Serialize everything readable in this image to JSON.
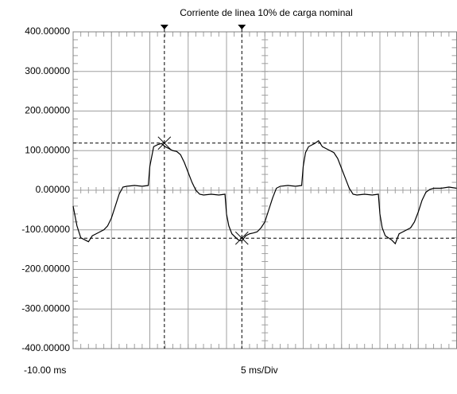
{
  "chart_data": {
    "type": "line",
    "title": "Corriente de linea 10% de carga nominal",
    "x_start_label": "-10.00 ms",
    "x_division_label": "5 ms/Div",
    "xlim": [
      -10,
      40
    ],
    "xticks": [
      -10,
      -5,
      0,
      5,
      10,
      15,
      20,
      25,
      30,
      35,
      40
    ],
    "ylim": [
      -400,
      400
    ],
    "yticks": [
      {
        "value": 400,
        "label": "400.00000"
      },
      {
        "value": 300,
        "label": "300.00000"
      },
      {
        "value": 200,
        "label": "200.00000"
      },
      {
        "value": 100,
        "label": "100.00000"
      },
      {
        "value": 0,
        "label": "0.00000"
      },
      {
        "value": -100,
        "label": "-100.00000"
      },
      {
        "value": -200,
        "label": "-200.00000"
      },
      {
        "value": -300,
        "label": "-300.00000"
      },
      {
        "value": -400,
        "label": "-400.00000"
      }
    ],
    "grid": true,
    "cursors": {
      "x": [
        1.9,
        12
      ],
      "y": [
        119,
        -121
      ]
    },
    "series": [
      {
        "color": "#000000",
        "x": [
          -10,
          -9.5,
          -9,
          -8.5,
          -8,
          -7.5,
          -7,
          -6.5,
          -6,
          -5.5,
          -5,
          -4.5,
          -4,
          -3.5,
          -3,
          -2,
          -1,
          -0.2,
          0,
          0.3,
          0.5,
          1,
          1.5,
          2,
          2.5,
          3,
          3.5,
          4,
          4.5,
          5,
          5.5,
          6,
          6.5,
          7,
          8,
          9,
          9.8,
          10,
          10.3,
          10.7,
          11.5,
          12,
          12.5,
          13,
          13.5,
          14,
          14.5,
          15,
          15.5,
          16,
          16.5,
          17,
          18,
          19,
          19.8,
          20,
          20.3,
          20.7,
          21.5,
          22,
          22.5,
          23,
          23.5,
          24,
          24.5,
          25,
          25.5,
          26,
          26.5,
          27,
          28,
          29,
          29.8,
          30,
          30.3,
          30.7,
          31.5,
          32,
          32.5,
          33,
          33.5,
          34,
          34.5,
          35,
          35.5,
          36,
          36.5,
          37,
          38,
          39,
          40
        ],
        "values": [
          -40,
          -90,
          -120,
          -125,
          -130,
          -115,
          -110,
          -105,
          -100,
          -90,
          -70,
          -40,
          -10,
          8,
          10,
          12,
          10,
          12,
          60,
          90,
          110,
          115,
          118,
          110,
          105,
          100,
          98,
          90,
          70,
          45,
          20,
          0,
          -10,
          -12,
          -10,
          -12,
          -10,
          -60,
          -90,
          -110,
          -125,
          -128,
          -115,
          -110,
          -108,
          -105,
          -95,
          -80,
          -50,
          -20,
          5,
          10,
          12,
          10,
          12,
          60,
          95,
          110,
          118,
          125,
          110,
          105,
          100,
          95,
          80,
          55,
          30,
          5,
          -10,
          -12,
          -10,
          -12,
          -10,
          -60,
          -95,
          -115,
          -125,
          -135,
          -110,
          -105,
          -100,
          -95,
          -80,
          -55,
          -25,
          -5,
          2,
          5,
          5,
          8,
          5
        ]
      }
    ]
  }
}
